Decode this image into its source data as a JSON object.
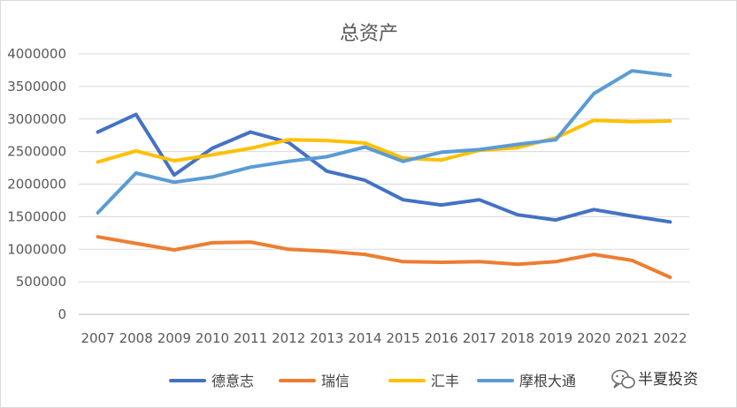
{
  "chart_data": {
    "type": "line",
    "title": "总资产",
    "xlabel": "",
    "ylabel": "",
    "categories": [
      "2007",
      "2008",
      "2009",
      "2010",
      "2011",
      "2012",
      "2013",
      "2014",
      "2015",
      "2016",
      "2017",
      "2018",
      "2019",
      "2020",
      "2021",
      "2022"
    ],
    "ylim": [
      0,
      4000000
    ],
    "yticks": [
      "0",
      "500000",
      "1000000",
      "1500000",
      "2000000",
      "2500000",
      "3000000",
      "3500000",
      "4000000"
    ],
    "grid": true,
    "legend_position": "bottom",
    "series": [
      {
        "name": "德意志",
        "color": "#4472C4",
        "values": [
          2800000,
          3070000,
          2140000,
          2550000,
          2800000,
          2640000,
          2200000,
          2060000,
          1760000,
          1680000,
          1760000,
          1530000,
          1450000,
          1610000,
          1510000,
          1420000
        ]
      },
      {
        "name": "瑞信",
        "color": "#ED7D31",
        "values": [
          1190000,
          1090000,
          990000,
          1100000,
          1110000,
          1000000,
          970000,
          920000,
          810000,
          800000,
          810000,
          770000,
          810000,
          920000,
          830000,
          570000
        ]
      },
      {
        "name": "汇丰",
        "color": "#FFC000",
        "values": [
          2340000,
          2510000,
          2360000,
          2450000,
          2550000,
          2680000,
          2670000,
          2630000,
          2400000,
          2370000,
          2520000,
          2560000,
          2710000,
          2980000,
          2960000,
          2970000
        ]
      },
      {
        "name": "摩根大通",
        "color": "#5B9BD5",
        "values": [
          1560000,
          2170000,
          2030000,
          2110000,
          2260000,
          2350000,
          2420000,
          2570000,
          2350000,
          2490000,
          2530000,
          2610000,
          2680000,
          3390000,
          3740000,
          3670000
        ]
      }
    ]
  },
  "watermark": {
    "text": "半夏投资",
    "icon": "wechat-icon"
  }
}
